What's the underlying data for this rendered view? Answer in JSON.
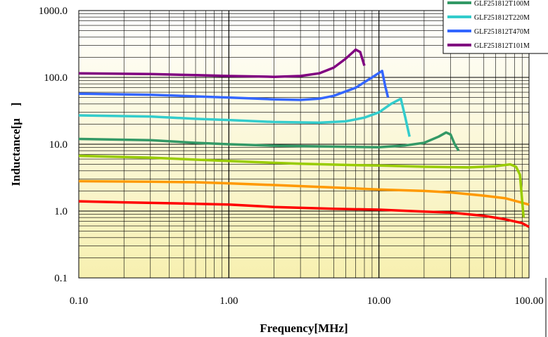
{
  "chart_data": {
    "type": "line",
    "xlabel": "Frequency[MHz]",
    "ylabel": "Inductance[μ　]",
    "x_scale": "log",
    "y_scale": "log",
    "xlim": [
      0.1,
      100
    ],
    "ylim": [
      0.1,
      1000
    ],
    "x_ticks": [
      "0.10",
      "1.00",
      "10.00",
      "100.00"
    ],
    "y_ticks": [
      "1000.0",
      "100.0",
      "10.0",
      "1.0",
      "0.1"
    ],
    "grid": true,
    "legend_position": "top-right",
    "series": [
      {
        "name": "",
        "color": "#ff0000",
        "points": [
          [
            0.1,
            1.4
          ],
          [
            0.2,
            1.35
          ],
          [
            0.5,
            1.3
          ],
          [
            1,
            1.25
          ],
          [
            2,
            1.15
          ],
          [
            5,
            1.08
          ],
          [
            10,
            1.05
          ],
          [
            20,
            0.98
          ],
          [
            30,
            0.95
          ],
          [
            50,
            0.85
          ],
          [
            70,
            0.75
          ],
          [
            90,
            0.66
          ],
          [
            100,
            0.58
          ]
        ]
      },
      {
        "name": "",
        "color": "#ff9900",
        "points": [
          [
            0.1,
            2.8
          ],
          [
            0.3,
            2.75
          ],
          [
            0.6,
            2.7
          ],
          [
            1,
            2.6
          ],
          [
            2,
            2.45
          ],
          [
            5,
            2.25
          ],
          [
            10,
            2.1
          ],
          [
            20,
            2.0
          ],
          [
            30,
            1.9
          ],
          [
            50,
            1.7
          ],
          [
            70,
            1.55
          ],
          [
            100,
            1.25
          ]
        ]
      },
      {
        "name": "",
        "color": "#99cc00",
        "points": [
          [
            0.1,
            6.7
          ],
          [
            0.3,
            6.3
          ],
          [
            0.7,
            5.8
          ],
          [
            1.5,
            5.4
          ],
          [
            3,
            5.1
          ],
          [
            6,
            4.9
          ],
          [
            10,
            4.8
          ],
          [
            20,
            4.6
          ],
          [
            40,
            4.5
          ],
          [
            60,
            4.7
          ],
          [
            75,
            5.0
          ],
          [
            82,
            4.6
          ],
          [
            87,
            3.5
          ],
          [
            92,
            0.8
          ]
        ]
      },
      {
        "name": "GLF251812T100M",
        "color": "#339966",
        "points": [
          [
            0.1,
            12
          ],
          [
            0.3,
            11.5
          ],
          [
            0.6,
            10.5
          ],
          [
            1,
            10
          ],
          [
            2,
            9.5
          ],
          [
            5,
            9.2
          ],
          [
            10,
            9.0
          ],
          [
            15,
            9.6
          ],
          [
            20,
            10.5
          ],
          [
            25,
            13
          ],
          [
            28,
            15
          ],
          [
            30,
            14
          ],
          [
            32,
            10
          ],
          [
            34,
            8
          ]
        ]
      },
      {
        "name": "GLF251812T220M",
        "color": "#33cccc",
        "points": [
          [
            0.1,
            27
          ],
          [
            0.3,
            26
          ],
          [
            0.6,
            24
          ],
          [
            1,
            23
          ],
          [
            2,
            21.5
          ],
          [
            4,
            21
          ],
          [
            6,
            22
          ],
          [
            8,
            25
          ],
          [
            10,
            30
          ],
          [
            12,
            40
          ],
          [
            14,
            48
          ],
          [
            15,
            25
          ],
          [
            16,
            13
          ]
        ]
      },
      {
        "name": "GLF251812T470M",
        "color": "#3366ff",
        "points": [
          [
            0.1,
            57
          ],
          [
            0.3,
            55
          ],
          [
            0.6,
            52
          ],
          [
            1,
            50
          ],
          [
            2,
            47
          ],
          [
            3,
            46
          ],
          [
            4,
            48
          ],
          [
            5,
            53
          ],
          [
            7,
            70
          ],
          [
            9,
            100
          ],
          [
            10.5,
            125
          ],
          [
            11,
            75
          ],
          [
            11.5,
            50
          ]
        ]
      },
      {
        "name": "GLF251812T101M",
        "color": "#800080",
        "points": [
          [
            0.1,
            115
          ],
          [
            0.3,
            112
          ],
          [
            0.6,
            108
          ],
          [
            1,
            105
          ],
          [
            2,
            102
          ],
          [
            3,
            105
          ],
          [
            4,
            115
          ],
          [
            5,
            140
          ],
          [
            6,
            190
          ],
          [
            7,
            260
          ],
          [
            7.5,
            240
          ],
          [
            8,
            150
          ]
        ]
      }
    ]
  }
}
